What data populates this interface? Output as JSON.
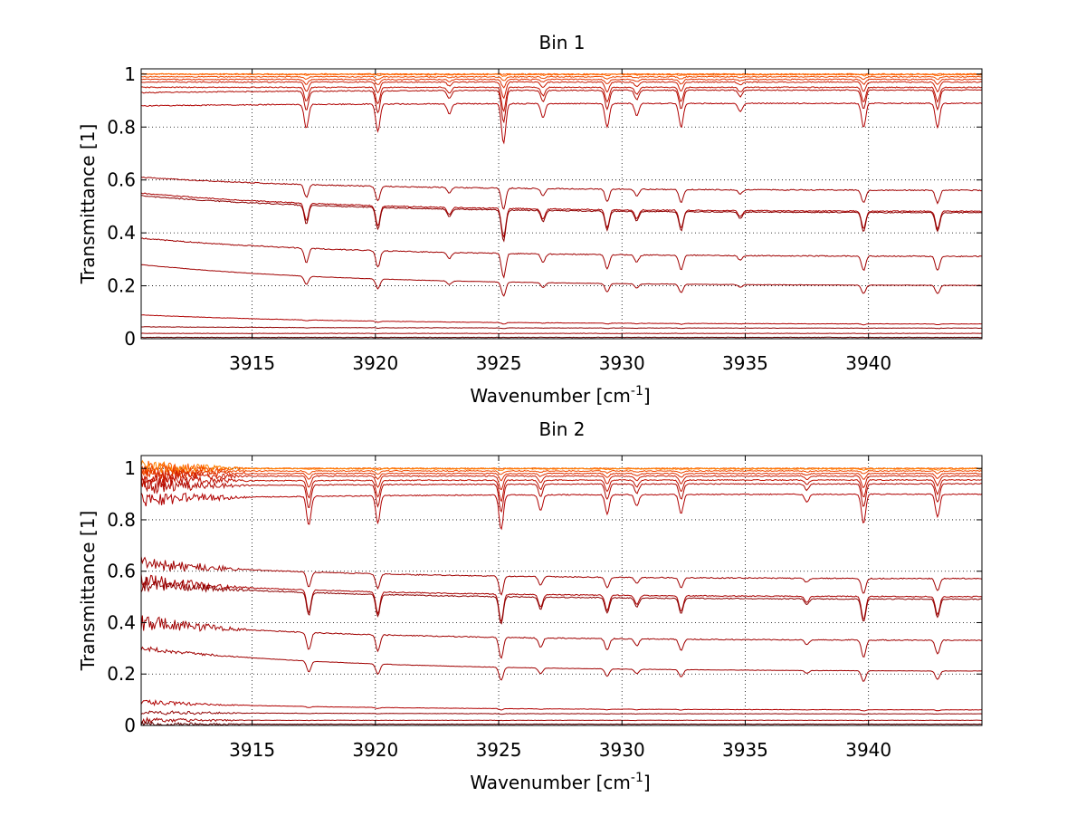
{
  "chart_data": [
    {
      "type": "line",
      "title": "Bin 1",
      "xlabel": "Wavenumber [cm",
      "xlabel_sup": "-1",
      "xlabel_end": "]",
      "ylabel": "Transmittance [1]",
      "xlim": [
        3910.5,
        3944.6
      ],
      "ylim": [
        0,
        1.02
      ],
      "xticks": [
        3915,
        3920,
        3925,
        3930,
        3935,
        3940
      ],
      "xtick_labels": [
        "3915",
        "3920",
        "3925",
        "3930",
        "3935",
        "3940"
      ],
      "yticks": [
        0,
        0.2,
        0.4,
        0.6,
        0.8,
        1
      ],
      "ytick_labels": [
        "0",
        "0.2",
        "0.4",
        "0.6",
        "0.8",
        "1"
      ],
      "grid": true,
      "noise_start": false,
      "absorption_lines": [
        {
          "x": 3917.2,
          "depth": 0.12
        },
        {
          "x": 3920.1,
          "depth": 0.14
        },
        {
          "x": 3923.0,
          "depth": 0.05
        },
        {
          "x": 3925.2,
          "depth": 0.2
        },
        {
          "x": 3926.8,
          "depth": 0.07
        },
        {
          "x": 3929.4,
          "depth": 0.12
        },
        {
          "x": 3930.6,
          "depth": 0.06
        },
        {
          "x": 3932.4,
          "depth": 0.12
        },
        {
          "x": 3934.8,
          "depth": 0.04
        },
        {
          "x": 3939.8,
          "depth": 0.12
        },
        {
          "x": 3942.8,
          "depth": 0.12
        }
      ],
      "series": [
        {
          "start": 1.0,
          "end": 1.0,
          "color": "#ff5a00",
          "depth_scale": 0.0
        },
        {
          "start": 1.0,
          "end": 0.998,
          "color": "#ff6a00",
          "depth_scale": 0.03
        },
        {
          "start": 0.99,
          "end": 0.99,
          "color": "#f04a00",
          "depth_scale": 0.08
        },
        {
          "start": 0.98,
          "end": 0.98,
          "color": "#e03000",
          "depth_scale": 0.15
        },
        {
          "start": 0.97,
          "end": 0.97,
          "color": "#cc1a00",
          "depth_scale": 0.3
        },
        {
          "start": 0.95,
          "end": 0.95,
          "color": "#c01000",
          "depth_scale": 0.45
        },
        {
          "start": 0.93,
          "end": 0.94,
          "color": "#b00800",
          "depth_scale": 0.6
        },
        {
          "start": 0.88,
          "end": 0.89,
          "color": "#b00000",
          "depth_scale": 0.75
        },
        {
          "start": 0.61,
          "end": 0.56,
          "color": "#a00000",
          "depth_scale": 0.4
        },
        {
          "start": 0.55,
          "end": 0.48,
          "color": "#a80000",
          "depth_scale": 0.55
        },
        {
          "start": 0.54,
          "end": 0.475,
          "color": "#8c0000",
          "depth_scale": 0.6
        },
        {
          "start": 0.38,
          "end": 0.31,
          "color": "#a00000",
          "depth_scale": 0.45
        },
        {
          "start": 0.28,
          "end": 0.2,
          "color": "#a00000",
          "depth_scale": 0.4
        },
        {
          "start": 0.09,
          "end": 0.055,
          "color": "#b00000",
          "depth_scale": 0.1
        },
        {
          "start": 0.045,
          "end": 0.04,
          "color": "#900000",
          "depth_scale": 0.06
        },
        {
          "start": 0.02,
          "end": 0.02,
          "color": "#a00000",
          "depth_scale": 0.02
        },
        {
          "start": 0.005,
          "end": 0.005,
          "color": "#600000",
          "depth_scale": 0.0
        }
      ]
    },
    {
      "type": "line",
      "title": "Bin 2",
      "xlabel": "Wavenumber [cm",
      "xlabel_sup": "-1",
      "xlabel_end": "]",
      "ylabel": "Transmittance [1]",
      "xlim": [
        3910.5,
        3944.6
      ],
      "ylim": [
        0,
        1.05
      ],
      "xticks": [
        3915,
        3920,
        3925,
        3930,
        3935,
        3940
      ],
      "xtick_labels": [
        "3915",
        "3920",
        "3925",
        "3930",
        "3935",
        "3940"
      ],
      "yticks": [
        0,
        0.2,
        0.4,
        0.6,
        0.8,
        1
      ],
      "ytick_labels": [
        "0",
        "0.2",
        "0.4",
        "0.6",
        "0.8",
        "1"
      ],
      "grid": true,
      "noise_start": true,
      "absorption_lines": [
        {
          "x": 3917.3,
          "depth": 0.15
        },
        {
          "x": 3920.1,
          "depth": 0.14
        },
        {
          "x": 3925.1,
          "depth": 0.18
        },
        {
          "x": 3926.7,
          "depth": 0.08
        },
        {
          "x": 3929.4,
          "depth": 0.1
        },
        {
          "x": 3930.6,
          "depth": 0.06
        },
        {
          "x": 3932.4,
          "depth": 0.1
        },
        {
          "x": 3937.5,
          "depth": 0.04
        },
        {
          "x": 3939.8,
          "depth": 0.15
        },
        {
          "x": 3942.8,
          "depth": 0.12
        }
      ],
      "series": [
        {
          "start": 1.0,
          "end": 1.0,
          "color": "#ff5a00",
          "depth_scale": 0.0
        },
        {
          "start": 1.0,
          "end": 0.998,
          "color": "#ff8000",
          "depth_scale": 0.03
        },
        {
          "start": 0.99,
          "end": 0.99,
          "color": "#f04a00",
          "depth_scale": 0.08
        },
        {
          "start": 0.98,
          "end": 0.98,
          "color": "#e03000",
          "depth_scale": 0.15
        },
        {
          "start": 0.97,
          "end": 0.97,
          "color": "#cc1a00",
          "depth_scale": 0.3
        },
        {
          "start": 0.95,
          "end": 0.955,
          "color": "#c01000",
          "depth_scale": 0.45
        },
        {
          "start": 0.93,
          "end": 0.94,
          "color": "#b00800",
          "depth_scale": 0.6
        },
        {
          "start": 0.88,
          "end": 0.9,
          "color": "#b00000",
          "depth_scale": 0.75
        },
        {
          "start": 0.63,
          "end": 0.57,
          "color": "#a00000",
          "depth_scale": 0.4
        },
        {
          "start": 0.56,
          "end": 0.5,
          "color": "#a80000",
          "depth_scale": 0.6
        },
        {
          "start": 0.55,
          "end": 0.49,
          "color": "#8c0000",
          "depth_scale": 0.6
        },
        {
          "start": 0.4,
          "end": 0.33,
          "color": "#a00000",
          "depth_scale": 0.45
        },
        {
          "start": 0.3,
          "end": 0.21,
          "color": "#a00000",
          "depth_scale": 0.4
        },
        {
          "start": 0.09,
          "end": 0.06,
          "color": "#b00000",
          "depth_scale": 0.1
        },
        {
          "start": 0.05,
          "end": 0.045,
          "color": "#900000",
          "depth_scale": 0.06
        },
        {
          "start": 0.02,
          "end": 0.02,
          "color": "#a00000",
          "depth_scale": 0.02
        },
        {
          "start": 0.005,
          "end": 0.005,
          "color": "#600000",
          "depth_scale": 0.0
        }
      ]
    }
  ]
}
